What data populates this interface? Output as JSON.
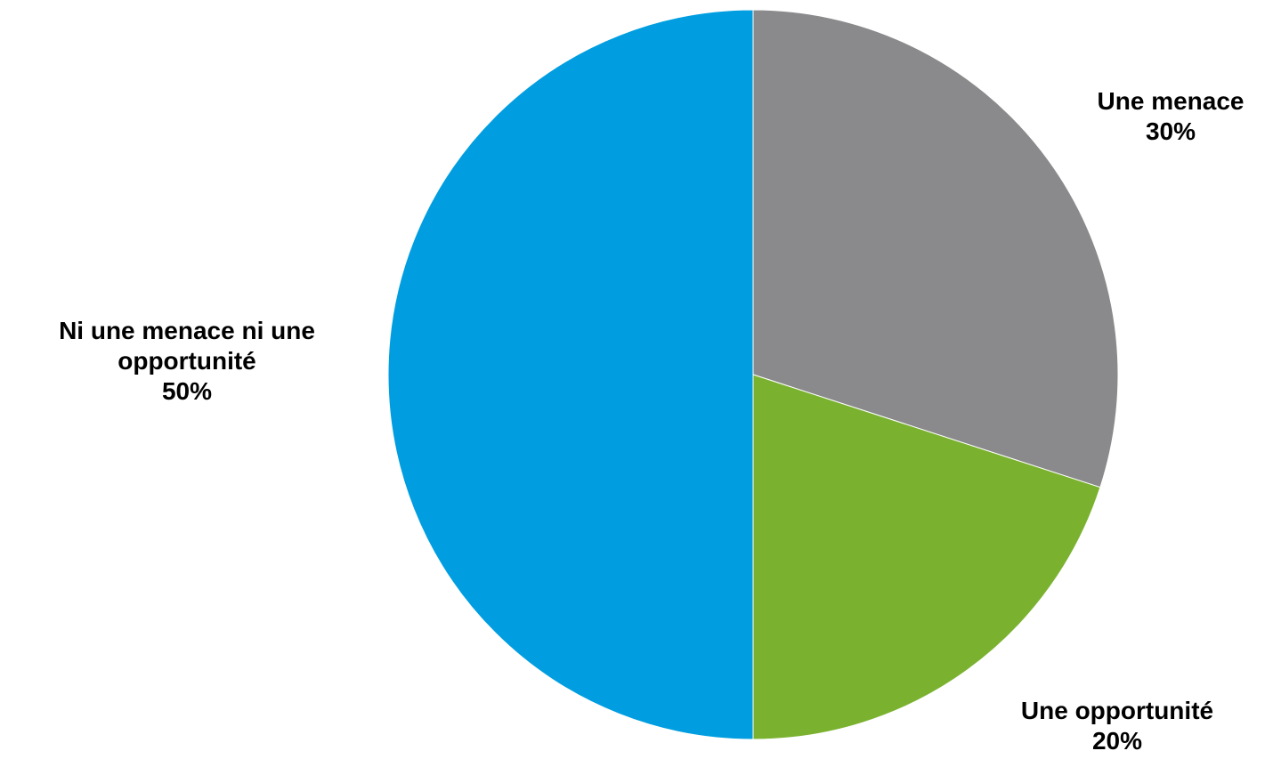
{
  "chart_data": {
    "type": "pie",
    "title": "",
    "start_angle_deg": 0,
    "direction": "clockwise",
    "slices": [
      {
        "label": "Une menace",
        "value": 30,
        "value_label": "30%",
        "color": "#8a8a8c"
      },
      {
        "label": "Une opportunité",
        "value": 20,
        "value_label": "20%",
        "color": "#7ab230"
      },
      {
        "label": "Ni une menace ni une opportunité",
        "value": 50,
        "value_label": "50%",
        "color": "#009ee0"
      }
    ]
  },
  "labels": {
    "threat": {
      "name": "Une menace",
      "pct": "30%"
    },
    "opportunity": {
      "name": "Une opportunité",
      "pct": "20%"
    },
    "neither": {
      "name_line1": "Ni une menace ni une",
      "name_line2": "opportunité",
      "pct": "50%"
    }
  }
}
